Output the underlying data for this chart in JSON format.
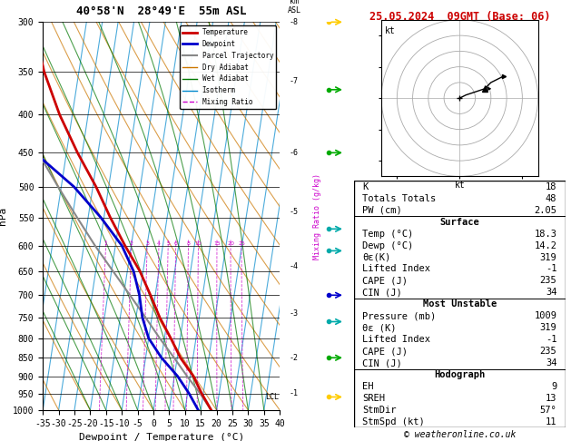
{
  "title_left": "40°58'N  28°49'E  55m ASL",
  "title_right": "25.05.2024  09GMT (Base: 06)",
  "xlabel": "Dewpoint / Temperature (°C)",
  "temp_xlim": [
    -35,
    40
  ],
  "skew_factor": 0.8,
  "temp_profile": {
    "pressure": [
      1000,
      950,
      900,
      850,
      800,
      750,
      700,
      650,
      600,
      550,
      500,
      450,
      400,
      350,
      300
    ],
    "temperature": [
      18.3,
      14.5,
      11.0,
      6.0,
      2.0,
      -2.5,
      -6.5,
      -11.0,
      -17.0,
      -23.0,
      -29.0,
      -36.5,
      -44.0,
      -51.0,
      -57.0
    ]
  },
  "dewp_profile": {
    "pressure": [
      1000,
      950,
      900,
      850,
      800,
      750,
      700,
      650,
      600,
      550,
      500,
      450,
      400,
      350,
      300
    ],
    "dewpoint": [
      14.2,
      10.5,
      6.0,
      0.0,
      -5.0,
      -8.0,
      -10.0,
      -13.0,
      -18.0,
      -26.0,
      -36.0,
      -50.0,
      -58.0,
      -62.0,
      -66.0
    ]
  },
  "parcel_profile": {
    "pressure": [
      1000,
      950,
      900,
      850,
      800,
      750,
      700,
      650,
      600,
      550,
      500,
      450,
      400,
      350,
      300
    ],
    "temperature": [
      18.3,
      14.0,
      9.0,
      4.0,
      -1.5,
      -7.0,
      -13.0,
      -19.5,
      -26.5,
      -33.5,
      -41.0,
      -49.0,
      -57.5,
      -66.0,
      -70.0
    ]
  },
  "lcl_pressure": 960,
  "colors": {
    "temperature": "#cc0000",
    "dewpoint": "#0000cc",
    "parcel": "#888888",
    "dry_adiabat": "#cc7700",
    "wet_adiabat": "#007700",
    "isotherm": "#0088cc",
    "mixing_ratio": "#cc00cc"
  },
  "legend_items": [
    {
      "label": "Temperature",
      "color": "#cc0000",
      "lw": 2.0,
      "ls": "-"
    },
    {
      "label": "Dewpoint",
      "color": "#0000cc",
      "lw": 2.0,
      "ls": "-"
    },
    {
      "label": "Parcel Trajectory",
      "color": "#888888",
      "lw": 1.5,
      "ls": "-"
    },
    {
      "label": "Dry Adiabat",
      "color": "#cc7700",
      "lw": 1.0,
      "ls": "-"
    },
    {
      "label": "Wet Adiabat",
      "color": "#007700",
      "lw": 1.0,
      "ls": "-"
    },
    {
      "label": "Isotherm",
      "color": "#0088cc",
      "lw": 1.0,
      "ls": "-"
    },
    {
      "label": "Mixing Ratio",
      "color": "#cc00cc",
      "lw": 1.0,
      "ls": "--"
    }
  ],
  "mixing_ratio_values": [
    1,
    2,
    3,
    4,
    5,
    6,
    8,
    10,
    15,
    20,
    25
  ],
  "km_labels": [
    {
      "km": 1,
      "pressure": 950
    },
    {
      "km": 2,
      "pressure": 850
    },
    {
      "km": 3,
      "pressure": 740
    },
    {
      "km": 4,
      "pressure": 640
    },
    {
      "km": 5,
      "pressure": 540
    },
    {
      "km": 6,
      "pressure": 450
    },
    {
      "km": 7,
      "pressure": 360
    },
    {
      "km": 8,
      "pressure": 300
    }
  ],
  "wind_arrows": [
    {
      "pressure": 300,
      "color": "#ffcc00"
    },
    {
      "pressure": 370,
      "color": "#00aa00"
    },
    {
      "pressure": 450,
      "color": "#00aa00"
    },
    {
      "pressure": 570,
      "color": "#00aaaa"
    },
    {
      "pressure": 610,
      "color": "#00aaaa"
    },
    {
      "pressure": 700,
      "color": "#0000cc"
    },
    {
      "pressure": 760,
      "color": "#00aaaa"
    },
    {
      "pressure": 850,
      "color": "#00aa00"
    },
    {
      "pressure": 960,
      "color": "#ffcc00"
    }
  ],
  "info_panel": {
    "K": 18,
    "Totals_Totals": 48,
    "PW_cm": "2.05",
    "Surface_Temp": "18.3",
    "Surface_Dewp": "14.2",
    "Surface_ThetaE": 319,
    "Surface_LI": -1,
    "Surface_CAPE": 235,
    "Surface_CIN": 34,
    "MU_Pressure": 1009,
    "MU_ThetaE": 319,
    "MU_LI": -1,
    "MU_CAPE": 235,
    "MU_CIN": 34,
    "EH": 9,
    "SREH": 13,
    "StmDir": "57°",
    "StmSpd": 11
  },
  "hodograph": {
    "wind_u": [
      0,
      2,
      5,
      8,
      10,
      12,
      14
    ],
    "wind_v": [
      0,
      1,
      2,
      3,
      5,
      6,
      7
    ],
    "storm_u": 8,
    "storm_v": 3
  }
}
